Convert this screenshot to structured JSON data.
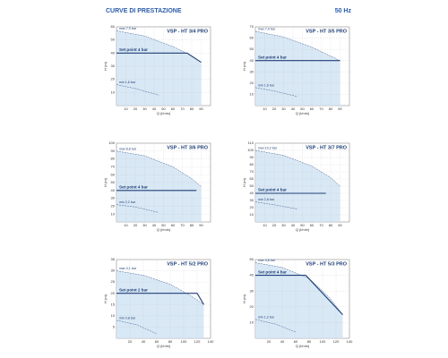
{
  "header": {
    "title": "CURVE DI PRESTAZIONE",
    "frequency": "50 Hz"
  },
  "chart_data": [
    {
      "type": "line",
      "title": "VSP - HT 3/4 PRO",
      "xlabel": "Q (l/min)",
      "ylabel": "H (m)",
      "xlim": [
        0,
        100
      ],
      "ylim": [
        0,
        60
      ],
      "xticks": [
        10,
        20,
        30,
        40,
        50,
        60,
        70,
        80,
        90
      ],
      "yticks": [
        10,
        20,
        30,
        40,
        50,
        60
      ],
      "grid": true,
      "series": [
        {
          "name": "max 7,9 bar",
          "color": "#3d5f93",
          "style": "dashed",
          "x": [
            0,
            30,
            60,
            80,
            90
          ],
          "values": [
            57,
            53,
            45,
            38,
            33
          ]
        },
        {
          "name": "Set point 4 bar",
          "color": "#1f3f78",
          "style": "solid",
          "x": [
            0,
            75,
            90
          ],
          "values": [
            40,
            40,
            33
          ]
        },
        {
          "name": "min 1,6 bar",
          "color": "#3d5f93",
          "style": "dashed",
          "x": [
            0,
            20,
            45
          ],
          "values": [
            16,
            13,
            8
          ]
        }
      ]
    },
    {
      "type": "line",
      "title": "VSP - HT 3/5 PRO",
      "xlabel": "Q (l/min)",
      "ylabel": "H (m)",
      "xlim": [
        0,
        100
      ],
      "ylim": [
        0,
        70
      ],
      "xticks": [
        10,
        20,
        30,
        40,
        50,
        60,
        70,
        80,
        90
      ],
      "yticks": [
        10,
        20,
        30,
        40,
        50,
        60,
        70
      ],
      "grid": true,
      "series": [
        {
          "name": "max 7,9 bar",
          "color": "#3d5f93",
          "style": "dashed",
          "x": [
            0,
            30,
            60,
            80,
            90
          ],
          "values": [
            66,
            61,
            52,
            44,
            40
          ]
        },
        {
          "name": "Set point 4 bar",
          "color": "#1f3f78",
          "style": "solid",
          "x": [
            0,
            90
          ],
          "values": [
            40,
            40
          ]
        },
        {
          "name": "min 1,6 bar",
          "color": "#3d5f93",
          "style": "dashed",
          "x": [
            0,
            20,
            45
          ],
          "values": [
            16,
            13,
            8
          ]
        }
      ]
    },
    {
      "type": "line",
      "title": "VSP - HT 3/6 PRO",
      "xlabel": "Q (l/min)",
      "ylabel": "H (m)",
      "xlim": [
        0,
        100
      ],
      "ylim": [
        0,
        100
      ],
      "xticks": [
        10,
        20,
        30,
        40,
        50,
        60,
        70,
        80,
        90
      ],
      "yticks": [
        10,
        20,
        30,
        40,
        50,
        60,
        70,
        80,
        90,
        100
      ],
      "grid": true,
      "series": [
        {
          "name": "max 8,8 bar",
          "color": "#3d5f93",
          "style": "dashed",
          "x": [
            0,
            30,
            60,
            80,
            90
          ],
          "values": [
            90,
            84,
            70,
            55,
            45
          ]
        },
        {
          "name": "Set point 4 bar",
          "color": "#1f3f78",
          "style": "solid",
          "x": [
            0,
            85
          ],
          "values": [
            40,
            40
          ]
        },
        {
          "name": "min 2,2 bar",
          "color": "#3d5f93",
          "style": "dashed",
          "x": [
            0,
            20,
            45
          ],
          "values": [
            22,
            19,
            12
          ]
        }
      ]
    },
    {
      "type": "line",
      "title": "VSP - HT 3/7 PRO",
      "xlabel": "Q (l/min)",
      "ylabel": "H (m)",
      "xlim": [
        0,
        100
      ],
      "ylim": [
        0,
        110
      ],
      "xticks": [
        10,
        20,
        30,
        40,
        50,
        60,
        70,
        80,
        90
      ],
      "yticks": [
        10,
        20,
        30,
        40,
        50,
        60,
        70,
        80,
        90,
        100,
        110
      ],
      "grid": true,
      "series": [
        {
          "name": "max 10,2 bar",
          "color": "#3d5f93",
          "style": "dashed",
          "x": [
            0,
            30,
            60,
            80,
            90
          ],
          "values": [
            100,
            93,
            78,
            62,
            50
          ]
        },
        {
          "name": "Set point 4 bar",
          "color": "#1f3f78",
          "style": "solid",
          "x": [
            0,
            75
          ],
          "values": [
            40,
            40
          ]
        },
        {
          "name": "min 2,8 bar",
          "color": "#3d5f93",
          "style": "dashed",
          "x": [
            0,
            20,
            45
          ],
          "values": [
            28,
            24,
            18
          ]
        }
      ]
    },
    {
      "type": "line",
      "title": "VSP - HT 5/2 PRO",
      "xlabel": "Q (l/min)",
      "ylabel": "H (m)",
      "xlim": [
        0,
        140
      ],
      "ylim": [
        0,
        35
      ],
      "xticks": [
        20,
        40,
        60,
        80,
        100,
        120,
        140
      ],
      "yticks": [
        5,
        10,
        15,
        20,
        25,
        30,
        35
      ],
      "grid": true,
      "series": [
        {
          "name": "max 3,1 bar",
          "color": "#3d5f93",
          "style": "dashed",
          "x": [
            0,
            40,
            80,
            110,
            130
          ],
          "values": [
            30,
            28,
            24,
            19,
            15
          ]
        },
        {
          "name": "Set point 2 bar",
          "color": "#1f3f78",
          "style": "solid",
          "x": [
            0,
            120,
            130
          ],
          "values": [
            20,
            20,
            15
          ]
        },
        {
          "name": "min 0,8 bar",
          "color": "#3d5f93",
          "style": "dashed",
          "x": [
            0,
            30,
            60
          ],
          "values": [
            8,
            6,
            2
          ]
        }
      ]
    },
    {
      "type": "line",
      "title": "VSP - HT 5/3 PRO",
      "xlabel": "Q (l/min)",
      "ylabel": "H (m)",
      "xlim": [
        0,
        140
      ],
      "ylim": [
        0,
        50
      ],
      "xticks": [
        20,
        40,
        60,
        80,
        100,
        120,
        140
      ],
      "yticks": [
        10,
        20,
        30,
        40,
        50
      ],
      "grid": true,
      "series": [
        {
          "name": "max 4,8 bar",
          "color": "#3d5f93",
          "style": "dashed",
          "x": [
            0,
            40,
            80,
            110,
            130
          ],
          "values": [
            48,
            45,
            38,
            26,
            15
          ]
        },
        {
          "name": "Set point 4 bar",
          "color": "#1f3f78",
          "style": "solid",
          "x": [
            0,
            75,
            130
          ],
          "values": [
            40,
            40,
            15
          ]
        },
        {
          "name": "min 1,2 bar",
          "color": "#3d5f93",
          "style": "dashed",
          "x": [
            0,
            30,
            60
          ],
          "values": [
            12,
            9,
            4
          ]
        }
      ]
    }
  ]
}
